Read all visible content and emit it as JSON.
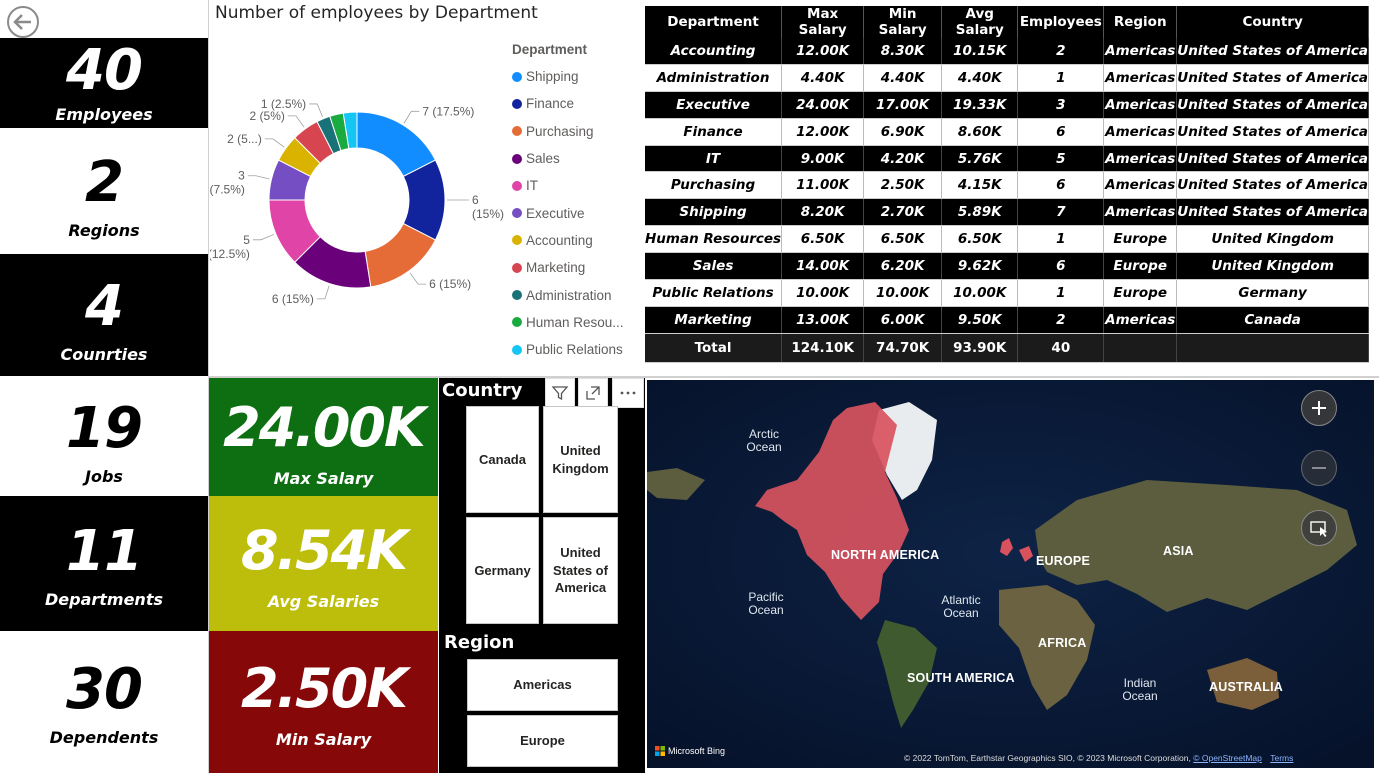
{
  "kpis": [
    {
      "value": "40",
      "label": "Employees"
    },
    {
      "value": "2",
      "label": "Regions"
    },
    {
      "value": "4",
      "label": "Counrties"
    },
    {
      "value": "19",
      "label": "Jobs"
    },
    {
      "value": "11",
      "label": "Departments"
    },
    {
      "value": "30",
      "label": "Dependents"
    }
  ],
  "salaries": [
    {
      "value": "24.00K",
      "label": "Max Salary",
      "color": "#0d6f12"
    },
    {
      "value": "8.54K",
      "label": "Avg Salaries",
      "color": "#bdbd0c"
    },
    {
      "value": "2.50K",
      "label": "Min Salary",
      "color": "#860808"
    }
  ],
  "chart_data": {
    "type": "pie",
    "title": "Number of employees by Department",
    "legend_title": "Department",
    "legend_placement": "right",
    "categories": [
      "Shipping",
      "Finance",
      "Purchasing",
      "Sales",
      "IT",
      "Executive",
      "Accounting",
      "Marketing",
      "Administration",
      "Human Resources",
      "Public Relations"
    ],
    "legend_labels": [
      "Shipping",
      "Finance",
      "Purchasing",
      "Sales",
      "IT",
      "Executive",
      "Accounting",
      "Marketing",
      "Administration",
      "Human Resou...",
      "Public Relations"
    ],
    "values": [
      7,
      6,
      6,
      6,
      5,
      3,
      2,
      2,
      1,
      1,
      1
    ],
    "colors": [
      "#118dff",
      "#12239e",
      "#e66c37",
      "#6b007b",
      "#e044a7",
      "#744ec2",
      "#d9b300",
      "#d64550",
      "#197278",
      "#1aab40",
      "#15c6f4"
    ],
    "data_labels": [
      {
        "line1": "7 (17.5%)",
        "line2": ""
      },
      {
        "line1": "6",
        "line2": "(15%)"
      },
      {
        "line1": "6 (15%)",
        "line2": ""
      },
      {
        "line1": "6 (15%)",
        "line2": ""
      },
      {
        "line1": "5",
        "line2": "(12.5%)"
      },
      {
        "line1": "3",
        "line2": "(7.5%)"
      },
      {
        "line1": "2 (5...)",
        "line2": ""
      },
      {
        "line1": "2 (5%)",
        "line2": ""
      },
      {
        "line1": "1 (2.5%)",
        "line2": ""
      }
    ]
  },
  "table": {
    "columns": [
      "Department",
      "Max Salary",
      "Min Salary",
      "Avg Salary",
      "Employees",
      "Region",
      "Country"
    ],
    "rows": [
      [
        "Accounting",
        "12.00K",
        "8.30K",
        "10.15K",
        "2",
        "Americas",
        "United States of America"
      ],
      [
        "Administration",
        "4.40K",
        "4.40K",
        "4.40K",
        "1",
        "Americas",
        "United States of America"
      ],
      [
        "Executive",
        "24.00K",
        "17.00K",
        "19.33K",
        "3",
        "Americas",
        "United States of America"
      ],
      [
        "Finance",
        "12.00K",
        "6.90K",
        "8.60K",
        "6",
        "Americas",
        "United States of America"
      ],
      [
        "IT",
        "9.00K",
        "4.20K",
        "5.76K",
        "5",
        "Americas",
        "United States of America"
      ],
      [
        "Purchasing",
        "11.00K",
        "2.50K",
        "4.15K",
        "6",
        "Americas",
        "United States of America"
      ],
      [
        "Shipping",
        "8.20K",
        "2.70K",
        "5.89K",
        "7",
        "Americas",
        "United States of America"
      ],
      [
        "Human Resources",
        "6.50K",
        "6.50K",
        "6.50K",
        "1",
        "Europe",
        "United Kingdom"
      ],
      [
        "Sales",
        "14.00K",
        "6.20K",
        "9.62K",
        "6",
        "Europe",
        "United Kingdom"
      ],
      [
        "Public Relations",
        "10.00K",
        "10.00K",
        "10.00K",
        "1",
        "Europe",
        "Germany"
      ],
      [
        "Marketing",
        "13.00K",
        "6.00K",
        "9.50K",
        "2",
        "Americas",
        "Canada"
      ]
    ],
    "total": [
      "Total",
      "124.10K",
      "74.70K",
      "93.90K",
      "40",
      "",
      ""
    ]
  },
  "country_slicer": {
    "title": "Country",
    "options": [
      "Canada",
      "United Kingdom",
      "Germany",
      "United States of America"
    ]
  },
  "region_slicer": {
    "title": "Region",
    "options": [
      "Americas",
      "Europe"
    ]
  },
  "visual_header": {
    "icons": [
      "filter-icon",
      "focus-mode-icon",
      "more-options-icon"
    ]
  },
  "map": {
    "oceans": [
      "Arctic Ocean",
      "Pacific Ocean",
      "Atlantic Ocean",
      "Indian Ocean"
    ],
    "continents": [
      "NORTH AMERICA",
      "EUROPE",
      "ASIA",
      "AFRICA",
      "SOUTH AMERICA",
      "AUSTRALIA"
    ],
    "attribution": "© 2022 TomTom, Earthstar Geographics SIO, © 2023 Microsoft Corporation,",
    "osm_link": "© OpenStreetMap",
    "terms_link": "Terms",
    "brand": "Microsoft Bing",
    "highlight_color": "#e05a64"
  }
}
